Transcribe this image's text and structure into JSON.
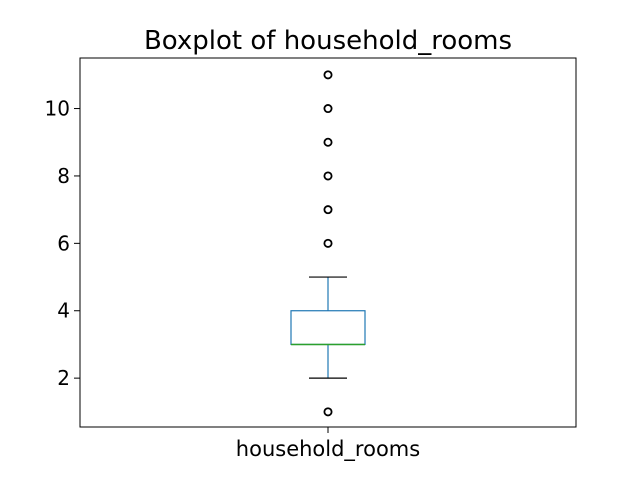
{
  "chart_data": {
    "type": "boxplot",
    "title": "Boxplot of household_rooms",
    "categories": [
      "household_rooms"
    ],
    "ylim": [
      0.55,
      11.5
    ],
    "yticks": [
      2,
      4,
      6,
      8,
      10
    ],
    "box": {
      "whisker_low": 2,
      "q1": 3,
      "median": 3,
      "q3": 4,
      "whisker_high": 5
    },
    "outliers": [
      1,
      6,
      7,
      8,
      9,
      10,
      11
    ],
    "grid": false
  },
  "colors": {
    "box": "#1f77b4",
    "median": "#2ca02c",
    "whisker_cap": "#000000",
    "outlier": "#000000",
    "axes": "#000000"
  }
}
